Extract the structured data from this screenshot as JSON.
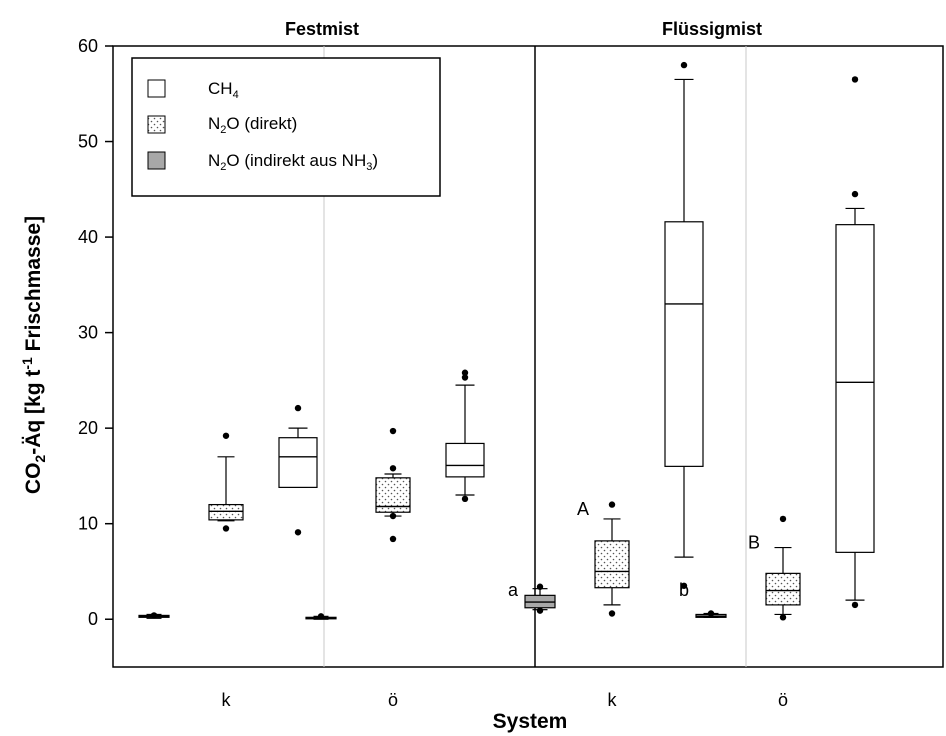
{
  "chart_data": {
    "type": "box",
    "ylabel_main": "CO",
    "ylabel_sub": "2",
    "ylabel_mid": "-Äq [kg t",
    "ylabel_sup": "-1",
    "ylabel_end": " Frischmasse]",
    "xlabel": "System",
    "ylim": [
      -5,
      60
    ],
    "yticks": [
      "0",
      "10",
      "20",
      "30",
      "40",
      "50",
      "60"
    ],
    "panels": [
      {
        "title": "Festmist",
        "groups": [
          "k",
          "ö"
        ]
      },
      {
        "title": "Flüssigmist",
        "groups": [
          "k",
          "ö"
        ]
      }
    ],
    "legend": {
      "placement": "top-left",
      "entries": [
        {
          "pattern": "white",
          "base": "CH",
          "sub": "4",
          "rest": ""
        },
        {
          "pattern": "dotted",
          "base": "N",
          "sub": "2",
          "rest": "O (direkt)"
        },
        {
          "pattern": "gray",
          "base": "N",
          "sub": "2",
          "rest": "O (indirekt aus NH",
          "sub2": "3",
          "end": ")"
        }
      ]
    },
    "boxes": [
      {
        "panel": 0,
        "group": 0,
        "series": "N2O indirekt",
        "pattern": "gray",
        "min": 0.1,
        "q1": 0.2,
        "median": 0.3,
        "q3": 0.4,
        "max": 0.5,
        "outliers": [
          0.4
        ]
      },
      {
        "panel": 0,
        "group": 0,
        "series": "N2O direkt",
        "pattern": "dotted",
        "min": 10.3,
        "q1": 10.4,
        "median": 11.3,
        "q3": 12.0,
        "max": 17.0,
        "outliers": [
          9.5,
          19.2
        ]
      },
      {
        "panel": 0,
        "group": 0,
        "series": "CH4",
        "pattern": "white",
        "min": 13.8,
        "q1": 13.8,
        "median": 17.0,
        "q3": 19.0,
        "max": 20.0,
        "outliers": [
          9.1,
          22.1
        ]
      },
      {
        "panel": 0,
        "group": 1,
        "series": "N2O indirekt",
        "pattern": "gray",
        "min": 0.0,
        "q1": 0.1,
        "median": 0.1,
        "q3": 0.2,
        "max": 0.3,
        "outliers": [
          0.3
        ]
      },
      {
        "panel": 0,
        "group": 1,
        "series": "N2O direkt",
        "pattern": "dotted",
        "min": 10.8,
        "q1": 11.2,
        "median": 11.8,
        "q3": 14.8,
        "max": 15.2,
        "outliers": [
          8.4,
          10.8,
          15.8,
          19.7
        ]
      },
      {
        "panel": 0,
        "group": 1,
        "series": "CH4",
        "pattern": "white",
        "min": 13.0,
        "q1": 14.9,
        "median": 16.1,
        "q3": 18.4,
        "max": 24.5,
        "outliers": [
          12.6,
          25.3,
          25.8
        ]
      },
      {
        "panel": 1,
        "group": 0,
        "series": "N2O indirekt",
        "pattern": "gray",
        "min": 1.0,
        "q1": 1.2,
        "median": 1.8,
        "q3": 2.5,
        "max": 3.2,
        "outliers": [
          0.9,
          3.4
        ]
      },
      {
        "panel": 1,
        "group": 0,
        "series": "N2O direkt",
        "pattern": "dotted",
        "min": 1.5,
        "q1": 3.3,
        "median": 5.0,
        "q3": 8.2,
        "max": 10.5,
        "outliers": [
          0.6,
          12.0
        ]
      },
      {
        "panel": 1,
        "group": 0,
        "series": "CH4",
        "pattern": "white",
        "min": 6.5,
        "q1": 16.0,
        "median": 33.0,
        "q3": 41.6,
        "max": 56.5,
        "outliers": [
          3.5,
          58.0
        ]
      },
      {
        "panel": 1,
        "group": 1,
        "series": "N2O indirekt",
        "pattern": "gray",
        "min": 0.2,
        "q1": 0.2,
        "median": 0.3,
        "q3": 0.5,
        "max": 0.6,
        "outliers": [
          0.6
        ]
      },
      {
        "panel": 1,
        "group": 1,
        "series": "N2O direkt",
        "pattern": "dotted",
        "min": 0.5,
        "q1": 1.5,
        "median": 3.0,
        "q3": 4.8,
        "max": 7.5,
        "outliers": [
          0.2,
          10.5
        ]
      },
      {
        "panel": 1,
        "group": 1,
        "series": "CH4",
        "pattern": "white",
        "min": 2.0,
        "q1": 7.0,
        "median": 24.8,
        "q3": 41.3,
        "max": 43.0,
        "outliers": [
          1.5,
          44.5,
          56.5
        ]
      }
    ],
    "sig_letters": [
      {
        "panel": 1,
        "group": 0,
        "series": 0,
        "text": "a",
        "y": 2.0
      },
      {
        "panel": 1,
        "group": 0,
        "series": 1,
        "text": "A",
        "y": 10.5
      },
      {
        "panel": 1,
        "group": 1,
        "series": 0,
        "text": "b",
        "y": 2.0
      },
      {
        "panel": 1,
        "group": 1,
        "series": 1,
        "text": "B",
        "y": 7.0
      }
    ]
  }
}
